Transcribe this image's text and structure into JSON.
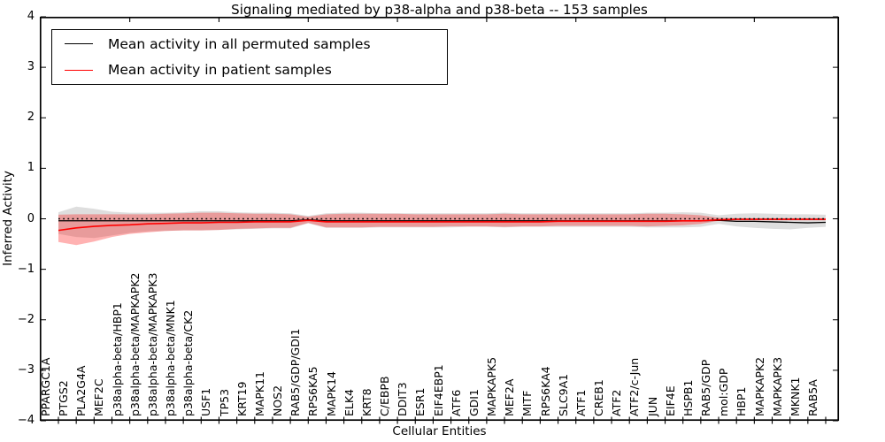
{
  "title": "Signaling mediated by p38-alpha and p38-beta -- 153 samples",
  "axes": {
    "ylabel": "Inferred Activity",
    "xlabel": "Cellular Entities",
    "yticklabels": [
      "−4",
      "−3",
      "−2",
      "−1",
      "0",
      "1",
      "2",
      "3",
      "4"
    ]
  },
  "legend": {
    "items": [
      {
        "label": "Mean activity in all permuted samples",
        "color": "#000000"
      },
      {
        "label": "Mean activity in patient samples",
        "color": "#ff0000"
      }
    ]
  },
  "chart_data": {
    "type": "line",
    "title": "Signaling mediated by p38-alpha and p38-beta -- 153 samples",
    "xlabel": "Cellular Entities",
    "ylabel": "Inferred Activity",
    "ylim": [
      -4,
      4
    ],
    "yticks": [
      -4,
      -3,
      -2,
      -1,
      0,
      1,
      2,
      3,
      4
    ],
    "grid": false,
    "zero_line_style": "dotted",
    "legend_position": "upper left",
    "categories": [
      "PPARGC1A",
      "PTGS2",
      "PLA2G4A",
      "MEF2C",
      "p38alpha-beta/HBP1",
      "p38alpha-beta/MAPKAPK2",
      "p38alpha-beta/MAPKAPK3",
      "p38alpha-beta/MNK1",
      "p38alpha-beta/CK2",
      "USF1",
      "TP53",
      "KRT19",
      "MAPK11",
      "NOS2",
      "RAB5/GDP/GDI1",
      "RPS6KA5",
      "MAPK14",
      "ELK4",
      "KRT8",
      "C/EBPB",
      "DDIT3",
      "ESR1",
      "EIF4EBP1",
      "ATF6",
      "GDI1",
      "MAPKAPK5",
      "MEF2A",
      "MITF",
      "RPS6KA4",
      "SLC9A1",
      "ATF1",
      "CREB1",
      "ATF2",
      "ATF2/c-Jun",
      "JUN",
      "EIF4E",
      "HSPB1",
      "RAB5/GDP",
      "mol:GDP",
      "HBP1",
      "MAPKAPK2",
      "MAPKAPK3",
      "MKNK1",
      "RAB5A"
    ],
    "series": [
      {
        "name": "Mean activity in all permuted samples",
        "color": "#000000",
        "band_color": "#000000",
        "band_alpha": 0.13,
        "values": [
          -0.04,
          -0.04,
          -0.04,
          -0.04,
          -0.04,
          -0.04,
          -0.04,
          -0.04,
          -0.04,
          -0.04,
          -0.04,
          -0.04,
          -0.04,
          -0.04,
          -0.02,
          -0.04,
          -0.04,
          -0.04,
          -0.04,
          -0.04,
          -0.04,
          -0.04,
          -0.04,
          -0.04,
          -0.04,
          -0.04,
          -0.04,
          -0.04,
          -0.04,
          -0.04,
          -0.04,
          -0.04,
          -0.04,
          -0.04,
          -0.04,
          -0.04,
          -0.04,
          -0.03,
          -0.05,
          -0.05,
          -0.06,
          -0.07,
          -0.08,
          -0.07
        ],
        "band_upper": [
          0.13,
          0.24,
          0.2,
          0.14,
          0.12,
          0.12,
          0.12,
          0.13,
          0.15,
          0.15,
          0.13,
          0.12,
          0.12,
          0.11,
          0.06,
          0.11,
          0.12,
          0.12,
          0.11,
          0.11,
          0.11,
          0.11,
          0.11,
          0.11,
          0.11,
          0.12,
          0.11,
          0.11,
          0.11,
          0.11,
          0.11,
          0.11,
          0.11,
          0.12,
          0.12,
          0.13,
          0.12,
          0.07,
          0.1,
          0.11,
          0.1,
          0.09,
          0.09,
          0.08
        ],
        "band_lower": [
          -0.3,
          -0.36,
          -0.38,
          -0.33,
          -0.28,
          -0.25,
          -0.24,
          -0.23,
          -0.23,
          -0.22,
          -0.21,
          -0.2,
          -0.19,
          -0.19,
          -0.09,
          -0.18,
          -0.18,
          -0.18,
          -0.17,
          -0.17,
          -0.17,
          -0.17,
          -0.17,
          -0.16,
          -0.16,
          -0.17,
          -0.16,
          -0.16,
          -0.16,
          -0.16,
          -0.16,
          -0.16,
          -0.16,
          -0.17,
          -0.17,
          -0.17,
          -0.16,
          -0.1,
          -0.15,
          -0.18,
          -0.2,
          -0.21,
          -0.18,
          -0.16
        ]
      },
      {
        "name": "Mean activity in patient samples",
        "color": "#ff0000",
        "band_color": "#ff0000",
        "band_alpha": 0.3,
        "values": [
          -0.23,
          -0.18,
          -0.15,
          -0.13,
          -0.12,
          -0.1,
          -0.09,
          -0.08,
          -0.08,
          -0.07,
          -0.07,
          -0.06,
          -0.06,
          -0.06,
          -0.03,
          -0.06,
          -0.06,
          -0.06,
          -0.06,
          -0.06,
          -0.06,
          -0.06,
          -0.06,
          -0.06,
          -0.06,
          -0.06,
          -0.06,
          -0.06,
          -0.05,
          -0.05,
          -0.05,
          -0.05,
          -0.05,
          -0.05,
          -0.05,
          -0.04,
          -0.04,
          -0.02,
          -0.01,
          -0.01,
          -0.01,
          -0.01,
          -0.01,
          -0.01
        ],
        "band_upper": [
          0.08,
          0.09,
          0.09,
          0.09,
          0.09,
          0.09,
          0.1,
          0.11,
          0.12,
          0.12,
          0.11,
          0.1,
          0.1,
          0.09,
          0.04,
          0.09,
          0.1,
          0.1,
          0.1,
          0.1,
          0.09,
          0.09,
          0.09,
          0.09,
          0.09,
          0.1,
          0.09,
          0.09,
          0.09,
          0.09,
          0.09,
          0.09,
          0.09,
          0.1,
          0.1,
          0.09,
          0.07,
          0.02,
          0.01,
          0.01,
          0.01,
          0.01,
          0.01,
          0.01
        ],
        "band_lower": [
          -0.46,
          -0.52,
          -0.45,
          -0.36,
          -0.3,
          -0.27,
          -0.24,
          -0.23,
          -0.23,
          -0.22,
          -0.2,
          -0.19,
          -0.18,
          -0.18,
          -0.08,
          -0.17,
          -0.17,
          -0.17,
          -0.16,
          -0.16,
          -0.16,
          -0.16,
          -0.15,
          -0.15,
          -0.15,
          -0.16,
          -0.15,
          -0.15,
          -0.14,
          -0.14,
          -0.14,
          -0.14,
          -0.14,
          -0.15,
          -0.14,
          -0.13,
          -0.1,
          -0.04,
          -0.03,
          -0.03,
          -0.03,
          -0.03,
          -0.03,
          -0.03
        ]
      }
    ]
  }
}
